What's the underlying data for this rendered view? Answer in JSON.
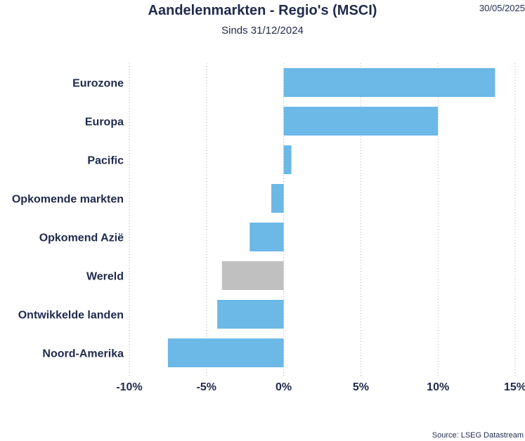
{
  "header": {
    "date": "30/05/2025",
    "source": "Source: LSEG Datastream"
  },
  "chart_data": {
    "type": "bar",
    "orientation": "horizontal",
    "title": "Aandelenmarkten - Regio's (MSCI)",
    "subtitle": "Sinds 31/12/2024",
    "categories": [
      "Eurozone",
      "Europa",
      "Pacific",
      "Opkomende markten",
      "Opkomend Azië",
      "Wereld",
      "Ontwikkelde landen",
      "Noord-Amerika"
    ],
    "values": [
      13.7,
      10.0,
      0.5,
      -0.8,
      -2.2,
      -4.0,
      -4.3,
      -7.5
    ],
    "highlight_category": "Wereld",
    "colors": {
      "bar": "#6cb8e6",
      "highlight": "#c0c0c0",
      "grid": "#b0b0b0",
      "text": "#1f2a4d"
    },
    "xlim": [
      -10,
      15
    ],
    "xticks": [
      -10,
      -5,
      0,
      5,
      10,
      15
    ],
    "xtick_labels": [
      "-10%",
      "-5%",
      "0%",
      "5%",
      "10%",
      "15%"
    ],
    "grid": "vertical dotted",
    "xlabel": "",
    "ylabel": ""
  }
}
